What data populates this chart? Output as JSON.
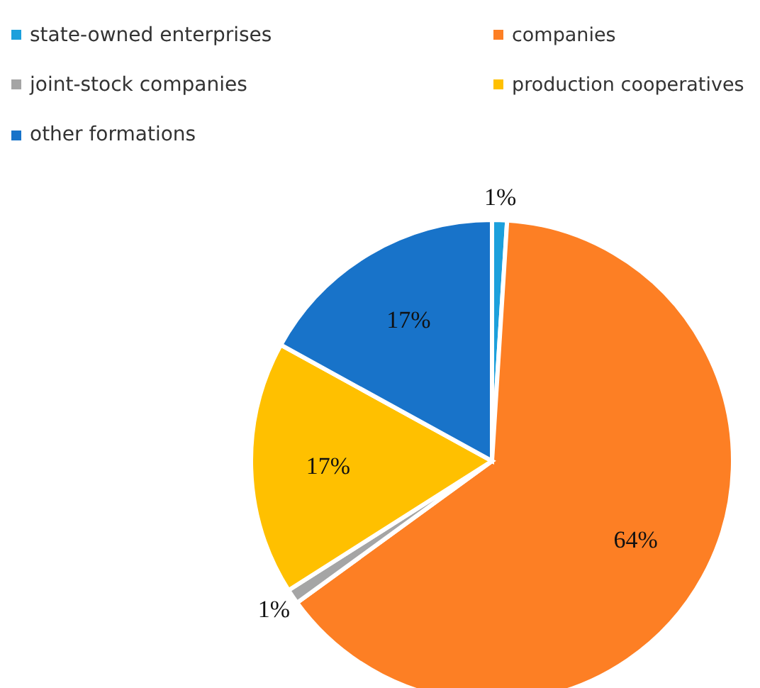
{
  "chart_data": {
    "type": "pie",
    "categories": [
      "state-owned enterprises",
      "companies",
      "joint-stock companies",
      "production cooperatives",
      "other formations"
    ],
    "values": [
      1,
      64,
      1,
      17,
      17
    ],
    "colors": [
      "#1ca0dc",
      "#fd7f24",
      "#a5a5a5",
      "#ffc000",
      "#1873c9"
    ],
    "value_labels": [
      "1%",
      "64%",
      "1%",
      "17%",
      "17%"
    ],
    "legend": "top"
  }
}
